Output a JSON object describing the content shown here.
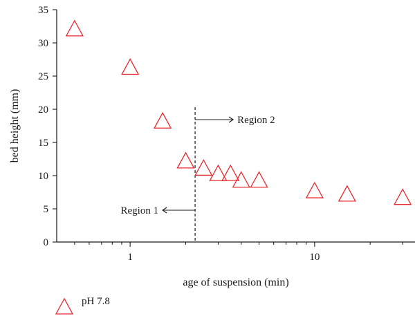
{
  "chart_data": {
    "type": "scatter",
    "xlabel": "age of suspension (min)",
    "ylabel": "bed height (mm)",
    "x_scale": "log",
    "xlim": [
      0.4,
      35
    ],
    "ylim": [
      0,
      35
    ],
    "x_major_ticks": [
      1,
      10
    ],
    "x_tick_labels": [
      "1",
      "10"
    ],
    "x_minor_ticks": [
      0.5,
      0.6,
      0.7,
      0.8,
      0.9,
      2,
      3,
      4,
      5,
      6,
      7,
      8,
      9,
      20,
      30
    ],
    "y_ticks": [
      0,
      5,
      10,
      15,
      20,
      25,
      30,
      35
    ],
    "y_tick_labels": [
      "0",
      "5",
      "10",
      "15",
      "20",
      "25",
      "30",
      "35"
    ],
    "grid": false,
    "legend_position": "below",
    "series": [
      {
        "name": "pH 7.8",
        "marker": "triangle-open",
        "color": "#e8292e",
        "points": [
          {
            "x": 0.5,
            "y": 32.1
          },
          {
            "x": 1.0,
            "y": 26.3
          },
          {
            "x": 1.5,
            "y": 18.2
          },
          {
            "x": 2.0,
            "y": 12.2
          },
          {
            "x": 2.5,
            "y": 11.1
          },
          {
            "x": 3.0,
            "y": 10.3
          },
          {
            "x": 3.5,
            "y": 10.3
          },
          {
            "x": 4.0,
            "y": 9.3
          },
          {
            "x": 5.0,
            "y": 9.3
          },
          {
            "x": 10.0,
            "y": 7.7
          },
          {
            "x": 15.0,
            "y": 7.2
          },
          {
            "x": 30.0,
            "y": 6.7
          }
        ]
      }
    ],
    "annotations": {
      "divider_x": 2.25,
      "region1_label": "Region 1",
      "region2_label": "Region 2"
    }
  }
}
